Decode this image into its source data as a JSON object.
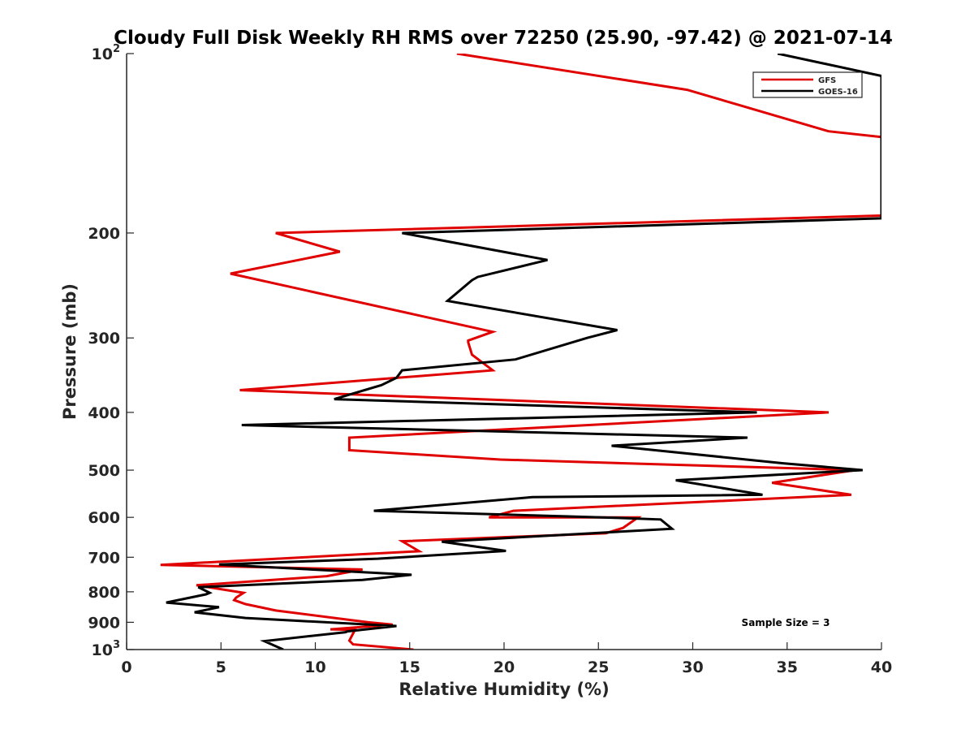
{
  "chart_data": {
    "type": "line",
    "title": "Cloudy Full Disk Weekly RH RMS over 72250 (25.90, -97.42) @ 2021-07-14",
    "xlabel": "Relative Humidity (%)",
    "ylabel": "Pressure (mb)",
    "xlim": [
      0,
      40
    ],
    "ylim": [
      100,
      1000
    ],
    "y_scale": "log",
    "y_reversed": true,
    "x_ticks": [
      "0",
      "5",
      "10",
      "15",
      "20",
      "25",
      "30",
      "35",
      "40"
    ],
    "y_ticks": [
      {
        "value": 100,
        "base": "10",
        "exp": "2"
      },
      {
        "value": 200,
        "label": "200"
      },
      {
        "value": 300,
        "label": "300"
      },
      {
        "value": 400,
        "label": "400"
      },
      {
        "value": 500,
        "label": "500"
      },
      {
        "value": 600,
        "label": "600"
      },
      {
        "value": 700,
        "label": "700"
      },
      {
        "value": 800,
        "label": "800"
      },
      {
        "value": 900,
        "label": "900"
      },
      {
        "value": 1000,
        "base": "10",
        "exp": "3"
      }
    ],
    "legend_position": "top-right",
    "annotation": "Sample Size = 3",
    "series": [
      {
        "name": "GFS",
        "color": "#e00000",
        "points": [
          [
            17.5,
            100
          ],
          [
            29.7,
            115
          ],
          [
            37.2,
            135
          ],
          [
            40.0,
            138
          ],
          [
            40.0,
            187
          ],
          [
            7.9,
            200
          ],
          [
            11.3,
            215
          ],
          [
            5.5,
            234
          ],
          [
            19.4,
            293
          ],
          [
            18.1,
            303
          ],
          [
            18.1,
            305
          ],
          [
            18.3,
            320
          ],
          [
            19.4,
            340
          ],
          [
            6.0,
            367
          ],
          [
            37.2,
            400
          ],
          [
            11.8,
            441
          ],
          [
            11.8,
            463
          ],
          [
            19.8,
            480
          ],
          [
            38.6,
            500
          ],
          [
            34.2,
            525
          ],
          [
            38.4,
            550
          ],
          [
            20.5,
            585
          ],
          [
            19.2,
            600
          ],
          [
            27.1,
            600
          ],
          [
            26.3,
            625
          ],
          [
            25.4,
            638
          ],
          [
            14.6,
            658
          ],
          [
            15.5,
            684
          ],
          [
            1.8,
            721
          ],
          [
            12.5,
            734
          ],
          [
            10.6,
            753
          ],
          [
            3.7,
            780
          ],
          [
            6.2,
            803
          ],
          [
            5.8,
            818
          ],
          [
            5.7,
            826
          ],
          [
            6.3,
            839
          ],
          [
            7.9,
            860
          ],
          [
            12.8,
            900
          ],
          [
            14.1,
            908
          ],
          [
            10.8,
            925
          ],
          [
            12.1,
            927
          ],
          [
            11.8,
            966
          ],
          [
            12.0,
            980
          ],
          [
            15.2,
            1000
          ]
        ]
      },
      {
        "name": "GOES-16",
        "color": "#000000",
        "points": [
          [
            34.5,
            100
          ],
          [
            40.0,
            109
          ],
          [
            40.0,
            189
          ],
          [
            14.6,
            200
          ],
          [
            22.3,
            222
          ],
          [
            18.6,
            237
          ],
          [
            18.3,
            240
          ],
          [
            17.0,
            260
          ],
          [
            26.0,
            291
          ],
          [
            24.4,
            300
          ],
          [
            20.6,
            326
          ],
          [
            14.6,
            340
          ],
          [
            14.3,
            350
          ],
          [
            13.5,
            360
          ],
          [
            11.0,
            380
          ],
          [
            33.4,
            400
          ],
          [
            6.1,
            420
          ],
          [
            32.9,
            441
          ],
          [
            25.7,
            455
          ],
          [
            34.8,
            487
          ],
          [
            39.0,
            500
          ],
          [
            29.1,
            520
          ],
          [
            33.7,
            550
          ],
          [
            21.5,
            555
          ],
          [
            13.1,
            585
          ],
          [
            25.9,
            601
          ],
          [
            28.3,
            605
          ],
          [
            28.9,
            627
          ],
          [
            16.7,
            659
          ],
          [
            20.1,
            683
          ],
          [
            13.3,
            704
          ],
          [
            4.9,
            720
          ],
          [
            15.1,
            749
          ],
          [
            12.5,
            764
          ],
          [
            3.8,
            786
          ],
          [
            4.4,
            803
          ],
          [
            4.2,
            808
          ],
          [
            2.1,
            834
          ],
          [
            4.9,
            849
          ],
          [
            3.6,
            866
          ],
          [
            6.3,
            885
          ],
          [
            14.3,
            913
          ],
          [
            11.7,
            932
          ],
          [
            11.6,
            935
          ],
          [
            7.3,
            968
          ],
          [
            8.3,
            1000
          ]
        ]
      }
    ]
  }
}
